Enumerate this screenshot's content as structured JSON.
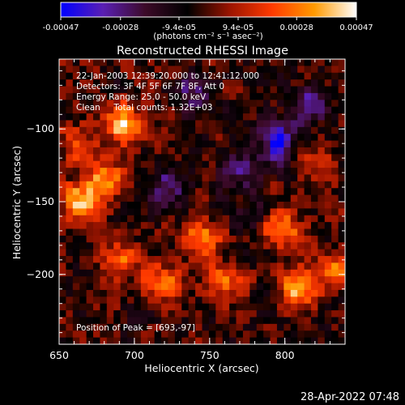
{
  "chart_data": {
    "type": "heatmap",
    "title": "Reconstructed RHESSI Image",
    "xlabel": "Heliocentric X (arcsec)",
    "ylabel": "Heliocentric Y (arcsec)",
    "xlim": [
      650,
      840
    ],
    "ylim": [
      -248,
      -52
    ],
    "x_ticks": [
      "650",
      "700",
      "750",
      "800"
    ],
    "x_tick_values": [
      650,
      700,
      750,
      800
    ],
    "y_ticks": [
      "−100",
      "−150",
      "−200"
    ],
    "y_tick_values": [
      -100,
      -150,
      -200
    ],
    "colorbar": {
      "range": [
        -0.00047,
        0.00047
      ],
      "tick_labels": [
        "-0.00047",
        "-0.00028",
        "-9.4e-05",
        "9.4e-05",
        "0.00028",
        "0.00047"
      ],
      "unit_label": "(photons cm⁻² s⁻¹ asec⁻²)",
      "colormap": [
        "#0000ff",
        "#5a1fb4",
        "#3c0a28",
        "#000000",
        "#9a1400",
        "#ff3a00",
        "#ff9a00",
        "#ffffff"
      ]
    },
    "annotations": [
      "22-Jan-2003 12:39:20.000 to 12:41:12.000",
      "Detectors: 3F 4F 5F 6F 7F 8F, Att 0",
      "Energy Range: 25.0 - 50.0 keV",
      "Clean     Total counts: 1.32E+03"
    ],
    "peak_label": "Position of Peak = [693,-97]",
    "peak": [
      693,
      -97
    ],
    "bright_sources": [
      {
        "x": 693,
        "y": -97,
        "value": 0.00047
      },
      {
        "x": 664,
        "y": -150,
        "value": 0.0004
      },
      {
        "x": 681,
        "y": -135,
        "value": 0.00035
      },
      {
        "x": 810,
        "y": -210,
        "value": 0.00042
      },
      {
        "x": 797,
        "y": -168,
        "value": 0.00038
      },
      {
        "x": 745,
        "y": -175,
        "value": 0.00033
      },
      {
        "x": 760,
        "y": -205,
        "value": 0.0003
      },
      {
        "x": 690,
        "y": -190,
        "value": 0.0003
      },
      {
        "x": 718,
        "y": -205,
        "value": 0.00026
      },
      {
        "x": 835,
        "y": -195,
        "value": 0.0003
      },
      {
        "x": 662,
        "y": -110,
        "value": 0.00022
      },
      {
        "x": 820,
        "y": -125,
        "value": 0.00018
      }
    ],
    "dark_regions": [
      {
        "x": 795,
        "y": -110,
        "value": -0.0004
      },
      {
        "x": 740,
        "y": -75,
        "value": -0.00025
      },
      {
        "x": 815,
        "y": -85,
        "value": -0.0003
      },
      {
        "x": 722,
        "y": -140,
        "value": -0.00028
      },
      {
        "x": 770,
        "y": -130,
        "value": -0.00022
      },
      {
        "x": 780,
        "y": -160,
        "value": -0.00018
      }
    ]
  },
  "footer": {
    "timestamp": "28-Apr-2022 07:48"
  }
}
